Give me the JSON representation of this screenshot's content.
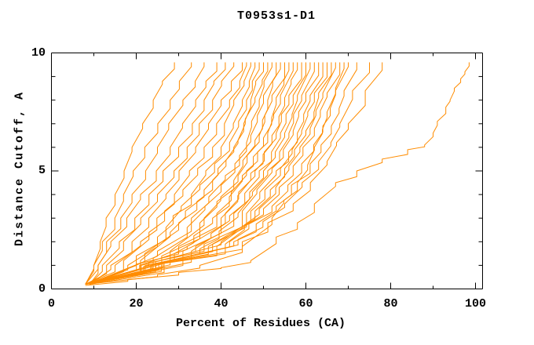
{
  "figure": {
    "title": "T0953s1-D1",
    "background_color": "#ffffff",
    "axis_color": "#000000"
  },
  "chart_data": {
    "type": "line",
    "title": "T0953s1-D1",
    "xlabel": "Percent of Residues (CA)",
    "ylabel": "Distance Cutoff, A",
    "xlim": [
      0,
      101.5
    ],
    "ylim": [
      0,
      10
    ],
    "x_ticks_major": [
      0,
      20,
      40,
      60,
      80,
      100
    ],
    "x_ticks_minor": [
      10,
      30,
      50,
      70,
      90
    ],
    "y_ticks_major": [
      0,
      5,
      10
    ],
    "y_ticks_minor": [
      1,
      2,
      3,
      4,
      6,
      7,
      8,
      9
    ],
    "grid": false,
    "legend": "none",
    "line_color": "#ff8c00",
    "line_style": "stepped",
    "description": "Approx. 36 unlabeled model curves: percent of CA residues under each distance cutoff, fanning from ~(8%,0.2A) to tops at 9.6A between 29% and 78%, plus one outlier reaching ~98.5%",
    "series": [
      {
        "points": [
          [
            8,
            0.2
          ],
          [
            10,
            1
          ],
          [
            11.5,
            2
          ],
          [
            15,
            4
          ],
          [
            19,
            6
          ],
          [
            24,
            8
          ],
          [
            29,
            9.6
          ]
        ]
      },
      {
        "points": [
          [
            8,
            0.2
          ],
          [
            10,
            1
          ],
          [
            12,
            2
          ],
          [
            17,
            4
          ],
          [
            22,
            6
          ],
          [
            28,
            8
          ],
          [
            33,
            9.6
          ]
        ]
      },
      {
        "points": [
          [
            9,
            0.2
          ],
          [
            11,
            1
          ],
          [
            13,
            2
          ],
          [
            19,
            4
          ],
          [
            25,
            6
          ],
          [
            31,
            8
          ],
          [
            36,
            9.6
          ]
        ]
      },
      {
        "points": [
          [
            8,
            0.2
          ],
          [
            11,
            1
          ],
          [
            14,
            2
          ],
          [
            21,
            4
          ],
          [
            28,
            6
          ],
          [
            34,
            8
          ],
          [
            39,
            9.6
          ]
        ]
      },
      {
        "points": [
          [
            9,
            0.2
          ],
          [
            12,
            1
          ],
          [
            16,
            2
          ],
          [
            23,
            4
          ],
          [
            30,
            6
          ],
          [
            36,
            8
          ],
          [
            41,
            9.6
          ]
        ]
      },
      {
        "points": [
          [
            8,
            0.2
          ],
          [
            13,
            1
          ],
          [
            17,
            2
          ],
          [
            25,
            4
          ],
          [
            32,
            6
          ],
          [
            38,
            8
          ],
          [
            43,
            9.6
          ]
        ]
      },
      {
        "points": [
          [
            9,
            0.2
          ],
          [
            14,
            1
          ],
          [
            19,
            2
          ],
          [
            27,
            4
          ],
          [
            34,
            6
          ],
          [
            40,
            8
          ],
          [
            45,
            9.6
          ]
        ]
      },
      {
        "points": [
          [
            8,
            0.2
          ],
          [
            15,
            1
          ],
          [
            21,
            2
          ],
          [
            29,
            4
          ],
          [
            36,
            6
          ],
          [
            42,
            8
          ],
          [
            46,
            9.6
          ]
        ]
      },
      {
        "points": [
          [
            9,
            0.2
          ],
          [
            17,
            1.2
          ],
          [
            23,
            2.4
          ],
          [
            31,
            4.2
          ],
          [
            38,
            6
          ],
          [
            43,
            8
          ],
          [
            47,
            9.6
          ]
        ]
      },
      {
        "points": [
          [
            8,
            0.2
          ],
          [
            18,
            1
          ],
          [
            25,
            2.2
          ],
          [
            33,
            4
          ],
          [
            40,
            6
          ],
          [
            45,
            8
          ],
          [
            48,
            9.6
          ]
        ]
      },
      {
        "points": [
          [
            10,
            0.3
          ],
          [
            20,
            1.4
          ],
          [
            27,
            2.6
          ],
          [
            35,
            4.4
          ],
          [
            42,
            6.2
          ],
          [
            46,
            8
          ],
          [
            49,
            9.6
          ]
        ]
      },
      {
        "points": [
          [
            8,
            0.2
          ],
          [
            21,
            1.2
          ],
          [
            28,
            2.4
          ],
          [
            36,
            4.2
          ],
          [
            43,
            6
          ],
          [
            47,
            8
          ],
          [
            50,
            9.6
          ]
        ]
      },
      {
        "points": [
          [
            9,
            0.2
          ],
          [
            22,
            1.5
          ],
          [
            30,
            2.8
          ],
          [
            38,
            4.6
          ],
          [
            44,
            6.3
          ],
          [
            48,
            8.1
          ],
          [
            51,
            9.6
          ]
        ]
      },
      {
        "points": [
          [
            8,
            0.2
          ],
          [
            24,
            1.3
          ],
          [
            32,
            2.6
          ],
          [
            40,
            4.4
          ],
          [
            46,
            6.2
          ],
          [
            49,
            8
          ],
          [
            52,
            9.6
          ]
        ]
      },
      {
        "points": [
          [
            10,
            0.3
          ],
          [
            25,
            1.6
          ],
          [
            33,
            3
          ],
          [
            41,
            4.8
          ],
          [
            47,
            6.5
          ],
          [
            50,
            8.2
          ],
          [
            53,
            9.6
          ]
        ]
      },
      {
        "points": [
          [
            8,
            0.2
          ],
          [
            26,
            1.4
          ],
          [
            35,
            2.8
          ],
          [
            43,
            4.6
          ],
          [
            48,
            6.3
          ],
          [
            51,
            8
          ],
          [
            54,
            9.6
          ]
        ]
      },
      {
        "points": [
          [
            9,
            0.2
          ],
          [
            28,
            1.6
          ],
          [
            36,
            3
          ],
          [
            44,
            4.8
          ],
          [
            49,
            6.5
          ],
          [
            52,
            8.2
          ],
          [
            55,
            9.6
          ]
        ]
      },
      {
        "points": [
          [
            8,
            0.2
          ],
          [
            29,
            1.5
          ],
          [
            38,
            3
          ],
          [
            45,
            4.8
          ],
          [
            50,
            6.4
          ],
          [
            53,
            8.1
          ],
          [
            56,
            9.6
          ]
        ]
      },
      {
        "points": [
          [
            10,
            0.3
          ],
          [
            30,
            1.8
          ],
          [
            39,
            3.2
          ],
          [
            46,
            5
          ],
          [
            51,
            6.6
          ],
          [
            54,
            8.2
          ],
          [
            57,
            9.6
          ]
        ]
      },
      {
        "points": [
          [
            8,
            0.2
          ],
          [
            31,
            1.6
          ],
          [
            40,
            3
          ],
          [
            47,
            4.9
          ],
          [
            52,
            6.5
          ],
          [
            55,
            8.1
          ],
          [
            58,
            9.6
          ]
        ]
      },
      {
        "points": [
          [
            9,
            0.2
          ],
          [
            32,
            1.8
          ],
          [
            41,
            3.2
          ],
          [
            48,
            5
          ],
          [
            53,
            6.6
          ],
          [
            56,
            8.2
          ],
          [
            59,
            9.6
          ]
        ]
      },
      {
        "points": [
          [
            8,
            0.2
          ],
          [
            33,
            1.6
          ],
          [
            42,
            3.1
          ],
          [
            49,
            5
          ],
          [
            54,
            6.6
          ],
          [
            57,
            8.2
          ],
          [
            60,
            9.6
          ]
        ]
      },
      {
        "points": [
          [
            9,
            0.2
          ],
          [
            34,
            1.8
          ],
          [
            43,
            3.2
          ],
          [
            50,
            5
          ],
          [
            55,
            6.6
          ],
          [
            58,
            8.2
          ],
          [
            61,
            9.6
          ]
        ]
      },
      {
        "points": [
          [
            8,
            0.2
          ],
          [
            35,
            1.7
          ],
          [
            44,
            3.2
          ],
          [
            51,
            5
          ],
          [
            56,
            6.6
          ],
          [
            59,
            8.2
          ],
          [
            62,
            9.6
          ]
        ]
      },
      {
        "points": [
          [
            10,
            0.3
          ],
          [
            36,
            1.9
          ],
          [
            45,
            3.3
          ],
          [
            52,
            5.1
          ],
          [
            57,
            6.7
          ],
          [
            60,
            8.3
          ],
          [
            63,
            9.6
          ]
        ]
      },
      {
        "points": [
          [
            8,
            0.2
          ],
          [
            37,
            1.8
          ],
          [
            46,
            3.2
          ],
          [
            53,
            5
          ],
          [
            58,
            6.6
          ],
          [
            61,
            8.2
          ],
          [
            64,
            9.6
          ]
        ]
      },
      {
        "points": [
          [
            9,
            0.2
          ],
          [
            38,
            1.9
          ],
          [
            47,
            3.3
          ],
          [
            54,
            5.1
          ],
          [
            59,
            6.7
          ],
          [
            62,
            8.3
          ],
          [
            65,
            9.6
          ]
        ]
      },
      {
        "points": [
          [
            8,
            0.2
          ],
          [
            39,
            1.8
          ],
          [
            48,
            3.3
          ],
          [
            55,
            5.1
          ],
          [
            60,
            6.7
          ],
          [
            63,
            8.3
          ],
          [
            66,
            9.6
          ]
        ]
      },
      {
        "points": [
          [
            10,
            0.3
          ],
          [
            40,
            2
          ],
          [
            49,
            3.4
          ],
          [
            56,
            5.2
          ],
          [
            61,
            6.8
          ],
          [
            64,
            8.3
          ],
          [
            67,
            9.6
          ]
        ]
      },
      {
        "points": [
          [
            8,
            0.2
          ],
          [
            41,
            1.9
          ],
          [
            50,
            3.4
          ],
          [
            57,
            5.2
          ],
          [
            62,
            6.8
          ],
          [
            65,
            8.3
          ],
          [
            68,
            9.6
          ]
        ]
      },
      {
        "points": [
          [
            9,
            0.2
          ],
          [
            42,
            2
          ],
          [
            52,
            3.5
          ],
          [
            59,
            5.3
          ],
          [
            64,
            6.9
          ],
          [
            67,
            8.4
          ],
          [
            70,
            9.6
          ]
        ]
      },
      {
        "points": [
          [
            8,
            0.2
          ],
          [
            43,
            2
          ],
          [
            53,
            3.5
          ],
          [
            61,
            5.3
          ],
          [
            66,
            6.9
          ],
          [
            69,
            8.4
          ],
          [
            72,
            9.6
          ]
        ]
      },
      {
        "points": [
          [
            9,
            0.2
          ],
          [
            44,
            2.1
          ],
          [
            55,
            3.6
          ],
          [
            63,
            5.4
          ],
          [
            68,
            7
          ],
          [
            71,
            8.4
          ],
          [
            75,
            9.6
          ]
        ]
      },
      {
        "points": [
          [
            8,
            0.2
          ],
          [
            45,
            2
          ],
          [
            57,
            3.6
          ],
          [
            65,
            5.4
          ],
          [
            70,
            7
          ],
          [
            74,
            8.4
          ],
          [
            78,
            9.6
          ]
        ]
      },
      {
        "points": [
          [
            8,
            0.2
          ],
          [
            25,
            0.6
          ],
          [
            35,
            1
          ],
          [
            45,
            1.8
          ],
          [
            52,
            3
          ],
          [
            58,
            4.5
          ],
          [
            62,
            6
          ],
          [
            65,
            7.5
          ],
          [
            67,
            8.5
          ],
          [
            69,
            9.6
          ]
        ]
      },
      {
        "points": [
          [
            8,
            0.15
          ],
          [
            18,
            0.4
          ],
          [
            30,
            0.7
          ],
          [
            40,
            0.9
          ],
          [
            47,
            1.2
          ],
          [
            53,
            2.2
          ],
          [
            58,
            2.8
          ],
          [
            62,
            3.6
          ],
          [
            67,
            4.5
          ],
          [
            72,
            5
          ],
          [
            78,
            5.5
          ],
          [
            84,
            5.9
          ],
          [
            88,
            6.1
          ],
          [
            90,
            6.6
          ],
          [
            91,
            7.1
          ],
          [
            93,
            7.7
          ],
          [
            94,
            8
          ],
          [
            95,
            8.5
          ],
          [
            96.5,
            8.9
          ],
          [
            97.5,
            9.2
          ],
          [
            98.5,
            9.6
          ]
        ]
      }
    ]
  }
}
